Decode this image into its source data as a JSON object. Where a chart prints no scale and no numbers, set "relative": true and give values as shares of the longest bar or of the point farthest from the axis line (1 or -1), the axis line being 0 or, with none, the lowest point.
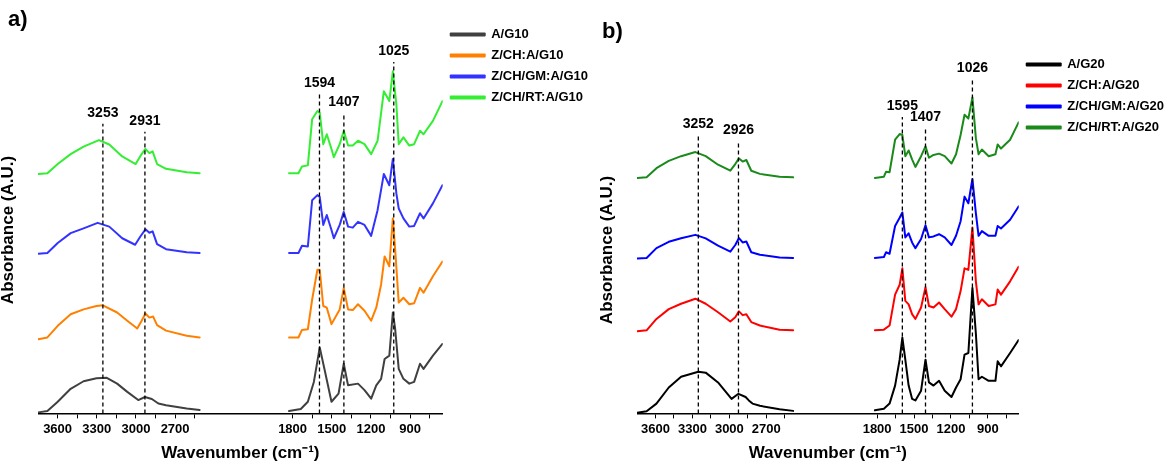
{
  "chart_data": [
    {
      "type": "line",
      "title": "a)",
      "ylabel": "Absorbance (A.U.)",
      "xlabel": "Wavenumber (cm⁻¹)",
      "relative": true,
      "legend": "right",
      "xlim": [
        3750,
        650
      ],
      "xticks": [
        3600,
        {
          "value": 3450,
          "label": null
        },
        3300,
        {
          "value": 3150,
          "label": null
        },
        3000,
        {
          "value": 2850,
          "label": null
        },
        2700,
        {
          "value": 2550,
          "label": null
        },
        1800,
        {
          "value": 1650,
          "label": null
        },
        1500,
        {
          "value": 1350,
          "label": null
        },
        1200,
        {
          "value": 1050,
          "label": null
        },
        900,
        {
          "value": 750,
          "label": null
        }
      ],
      "ref_lines": [
        {
          "axis": "x",
          "value": 3253,
          "label": "3253",
          "line_style": "dashed"
        },
        {
          "axis": "x",
          "value": 2931,
          "label": "2931",
          "line_style": "dashed"
        },
        {
          "axis": "x",
          "value": 1594,
          "label": "1594",
          "line_style": "dashed"
        },
        {
          "axis": "x",
          "value": 1407,
          "label": "1407",
          "line_style": "dashed"
        },
        {
          "axis": "x",
          "value": 1025,
          "label": "1025",
          "line_style": "dashed"
        }
      ],
      "series": [
        {
          "name": "A/G10",
          "color": "#404040",
          "x": [
            3747,
            3678,
            3599,
            3500,
            3401,
            3302,
            3223,
            3144,
            3066,
            2982,
            2931,
            2878,
            2828,
            2769,
            2611,
            2512,
            2170,
            1827,
            1737,
            1683,
            1637,
            1592,
            1556,
            1502,
            1448,
            1408,
            1375,
            1299,
            1249,
            1198,
            1159,
            1122,
            1095,
            1059,
            1032,
            1014,
            987,
            951,
            906,
            869,
            824,
            797,
            725,
            652
          ],
          "values": [
            0.003,
            0.007,
            0.034,
            0.072,
            0.094,
            0.103,
            0.104,
            0.087,
            0.063,
            0.039,
            0.048,
            0.042,
            0.029,
            0.024,
            0.014,
            0.01,
            null,
            0.007,
            0.013,
            0.034,
            0.092,
            0.193,
            0.13,
            0.034,
            0.058,
            0.145,
            0.082,
            0.087,
            0.068,
            0.043,
            0.082,
            0.101,
            0.159,
            0.169,
            0.295,
            0.246,
            0.13,
            0.101,
            0.087,
            0.092,
            0.145,
            0.13,
            0.169,
            0.203
          ]
        },
        {
          "name": "Z/CH:A/G10",
          "color": "#ff8000",
          "x": [
            3747,
            3678,
            3599,
            3500,
            3401,
            3302,
            3253,
            3144,
            3066,
            2990,
            2956,
            2927,
            2897,
            2868,
            2838,
            2769,
            2611,
            2512,
            2170,
            1827,
            1755,
            1728,
            1683,
            1650,
            1610,
            1592,
            1565,
            1538,
            1502,
            1439,
            1408,
            1375,
            1339,
            1299,
            1249,
            1198,
            1159,
            1122,
            1095,
            1059,
            1032,
            1014,
            987,
            951,
            906,
            869,
            824,
            797,
            725,
            652
          ],
          "values": [
            0.217,
            0.222,
            0.256,
            0.29,
            0.304,
            0.314,
            0.316,
            0.295,
            0.271,
            0.248,
            0.271,
            0.292,
            0.28,
            0.283,
            0.258,
            0.242,
            0.227,
            0.222,
            null,
            0.222,
            0.222,
            0.244,
            0.246,
            0.333,
            0.42,
            0.42,
            0.314,
            0.309,
            0.261,
            0.304,
            0.367,
            0.304,
            0.302,
            0.319,
            0.3,
            0.271,
            0.309,
            0.377,
            0.459,
            0.43,
            0.57,
            0.478,
            0.324,
            0.338,
            0.319,
            0.322,
            0.367,
            0.353,
            0.401,
            0.444
          ]
        },
        {
          "name": "Z/CH/GM:A/G10",
          "color": "#3333ff",
          "x": [
            3747,
            3678,
            3599,
            3500,
            3401,
            3293,
            3204,
            3105,
            3006,
            2966,
            2927,
            2897,
            2872,
            2838,
            2769,
            2611,
            2512,
            2170,
            1827,
            1755,
            1728,
            1683,
            1650,
            1610,
            1592,
            1565,
            1538,
            1502,
            1484,
            1439,
            1408,
            1375,
            1339,
            1299,
            1249,
            1198,
            1149,
            1101,
            1059,
            1032,
            1005,
            987,
            951,
            906,
            869,
            824,
            797,
            725,
            652
          ],
          "values": [
            0.467,
            0.469,
            0.498,
            0.527,
            0.541,
            0.557,
            0.546,
            0.512,
            0.493,
            0.517,
            0.538,
            0.528,
            0.532,
            0.495,
            0.48,
            0.471,
            0.469,
            null,
            0.469,
            0.469,
            0.49,
            0.488,
            0.623,
            0.638,
            0.633,
            0.551,
            0.58,
            0.536,
            0.512,
            0.551,
            0.589,
            0.546,
            0.543,
            0.56,
            0.551,
            0.519,
            0.594,
            0.7,
            0.667,
            0.744,
            0.643,
            0.599,
            0.57,
            0.546,
            0.548,
            0.585,
            0.57,
            0.614,
            0.667
          ]
        },
        {
          "name": "Z/CH/RT:A/G10",
          "color": "#33ee33",
          "x": [
            3747,
            3678,
            3599,
            3500,
            3401,
            3283,
            3204,
            3105,
            3002,
            2956,
            2927,
            2897,
            2872,
            2838,
            2769,
            2611,
            2512,
            2170,
            1827,
            1755,
            1728,
            1683,
            1650,
            1610,
            1592,
            1565,
            1538,
            1502,
            1484,
            1439,
            1408,
            1375,
            1339,
            1299,
            1249,
            1198,
            1149,
            1101,
            1059,
            1032,
            1005,
            987,
            951,
            906,
            869,
            824,
            797,
            725,
            652
          ],
          "values": [
            0.7,
            0.702,
            0.729,
            0.758,
            0.78,
            0.799,
            0.786,
            0.751,
            0.729,
            0.758,
            0.773,
            0.761,
            0.766,
            0.729,
            0.715,
            0.705,
            0.702,
            null,
            0.702,
            0.702,
            0.722,
            0.725,
            0.86,
            0.884,
            0.879,
            0.787,
            0.816,
            0.773,
            0.749,
            0.787,
            0.826,
            0.783,
            0.783,
            0.797,
            0.787,
            0.758,
            0.797,
            0.942,
            0.913,
            1.0,
            0.903,
            0.787,
            0.807,
            0.783,
            0.787,
            0.826,
            0.816,
            0.855,
            0.913
          ]
        }
      ]
    },
    {
      "type": "line",
      "title": "b)",
      "ylabel": "Absorbance (A.U.)",
      "xlabel": "Wavenumber (cm⁻¹)",
      "relative": true,
      "legend": "right",
      "xlim": [
        3750,
        650
      ],
      "xticks": [
        3600,
        {
          "value": 3450,
          "label": null
        },
        3300,
        {
          "value": 3150,
          "label": null
        },
        3000,
        {
          "value": 2850,
          "label": null
        },
        2700,
        {
          "value": 2550,
          "label": null
        },
        1800,
        {
          "value": 1650,
          "label": null
        },
        1500,
        {
          "value": 1350,
          "label": null
        },
        1200,
        {
          "value": 1050,
          "label": null
        },
        900,
        {
          "value": 750,
          "label": null
        }
      ],
      "ref_lines": [
        {
          "axis": "x",
          "value": 3252,
          "label": "3252",
          "line_style": "dashed"
        },
        {
          "axis": "x",
          "value": 2926,
          "label": "2926",
          "line_style": "dashed"
        },
        {
          "axis": "x",
          "value": 1595,
          "label": "1595",
          "line_style": "dashed"
        },
        {
          "axis": "x",
          "value": 1407,
          "label": "1407",
          "line_style": "dashed"
        },
        {
          "axis": "x",
          "value": 1026,
          "label": "1026",
          "line_style": "dashed"
        }
      ],
      "series": [
        {
          "name": "A/G20",
          "color": "#000000",
          "x": [
            3748,
            3672,
            3592,
            3492,
            3392,
            3252,
            3192,
            3092,
            2982,
            2926,
            2868,
            2842,
            2812,
            2752,
            2592,
            2482,
            2150,
            1818,
            1745,
            1699,
            1654,
            1617,
            1595,
            1571,
            1544,
            1516,
            1489,
            1443,
            1407,
            1379,
            1342,
            1297,
            1251,
            1196,
            1159,
            1122,
            1090,
            1059,
            1026,
            998,
            976,
            949,
            894,
            839,
            821,
            794,
            720,
            651
          ],
          "values": [
            0.002,
            0.007,
            0.031,
            0.082,
            0.116,
            0.132,
            0.129,
            0.098,
            0.046,
            0.062,
            0.052,
            0.041,
            0.031,
            0.024,
            0.013,
            0.008,
            null,
            0.01,
            0.015,
            0.031,
            0.088,
            0.17,
            0.24,
            0.17,
            0.088,
            0.046,
            0.041,
            0.072,
            0.17,
            0.098,
            0.088,
            0.103,
            0.072,
            0.052,
            0.082,
            0.108,
            0.186,
            0.191,
            0.397,
            0.253,
            0.108,
            0.116,
            0.103,
            0.103,
            0.165,
            0.149,
            0.191,
            0.232
          ]
        },
        {
          "name": "Z/CH:A/G20",
          "color": "#ff0000",
          "x": [
            3748,
            3672,
            3592,
            3492,
            3392,
            3276,
            3192,
            3092,
            2992,
            2952,
            2922,
            2892,
            2862,
            2822,
            2752,
            2592,
            2482,
            2150,
            1818,
            1745,
            1699,
            1654,
            1617,
            1595,
            1571,
            1544,
            1516,
            1489,
            1443,
            1407,
            1379,
            1342,
            1297,
            1251,
            1196,
            1159,
            1122,
            1090,
            1059,
            1026,
            998,
            976,
            949,
            894,
            839,
            821,
            794,
            720,
            651
          ],
          "values": [
            0.26,
            0.263,
            0.299,
            0.33,
            0.347,
            0.363,
            0.347,
            0.32,
            0.291,
            0.304,
            0.323,
            0.311,
            0.314,
            0.289,
            0.278,
            0.265,
            0.263,
            null,
            0.263,
            0.265,
            0.278,
            0.376,
            0.407,
            0.459,
            0.356,
            0.345,
            0.314,
            0.299,
            0.335,
            0.399,
            0.34,
            0.335,
            0.351,
            0.33,
            0.306,
            0.33,
            0.387,
            0.459,
            0.454,
            0.588,
            0.418,
            0.345,
            0.361,
            0.34,
            0.345,
            0.392,
            0.376,
            0.418,
            0.464
          ]
        },
        {
          "name": "Z/CH/GM:A/G20",
          "color": "#0000ff",
          "x": [
            3748,
            3672,
            3592,
            3492,
            3392,
            3276,
            3192,
            3092,
            2992,
            2952,
            2922,
            2892,
            2862,
            2822,
            2752,
            2592,
            2482,
            2150,
            1818,
            1745,
            1727,
            1699,
            1654,
            1617,
            1595,
            1571,
            1544,
            1516,
            1489,
            1443,
            1407,
            1379,
            1342,
            1297,
            1251,
            1196,
            1159,
            1122,
            1090,
            1059,
            1026,
            998,
            976,
            949,
            894,
            839,
            821,
            794,
            720,
            651
          ],
          "values": [
            0.49,
            0.492,
            0.523,
            0.543,
            0.554,
            0.565,
            0.554,
            0.531,
            0.512,
            0.533,
            0.555,
            0.541,
            0.544,
            0.51,
            0.502,
            0.493,
            0.492,
            null,
            0.492,
            0.495,
            0.51,
            0.505,
            0.593,
            0.619,
            0.636,
            0.557,
            0.57,
            0.541,
            0.523,
            0.552,
            0.595,
            0.557,
            0.56,
            0.567,
            0.557,
            0.533,
            0.562,
            0.608,
            0.686,
            0.665,
            0.742,
            0.634,
            0.562,
            0.577,
            0.562,
            0.562,
            0.593,
            0.585,
            0.613,
            0.655
          ]
        },
        {
          "name": "Z/CH/RT:A/G20",
          "color": "#1a8a1a",
          "x": [
            3748,
            3672,
            3592,
            3492,
            3392,
            3276,
            3192,
            3092,
            2992,
            2952,
            2922,
            2892,
            2862,
            2822,
            2752,
            2592,
            2482,
            2150,
            1818,
            1745,
            1727,
            1699,
            1654,
            1617,
            1595,
            1571,
            1544,
            1516,
            1489,
            1443,
            1407,
            1379,
            1342,
            1297,
            1251,
            1196,
            1159,
            1122,
            1090,
            1059,
            1026,
            998,
            976,
            949,
            894,
            839,
            821,
            794,
            720,
            651
          ],
          "values": [
            0.745,
            0.747,
            0.776,
            0.799,
            0.814,
            0.827,
            0.814,
            0.787,
            0.768,
            0.789,
            0.807,
            0.797,
            0.802,
            0.768,
            0.758,
            0.749,
            0.747,
            null,
            0.745,
            0.749,
            0.765,
            0.763,
            0.866,
            0.884,
            0.881,
            0.814,
            0.832,
            0.804,
            0.78,
            0.814,
            0.845,
            0.809,
            0.818,
            0.822,
            0.814,
            0.791,
            0.82,
            0.881,
            0.945,
            0.933,
            1.0,
            0.871,
            0.82,
            0.835,
            0.814,
            0.82,
            0.851,
            0.838,
            0.866,
            0.921
          ]
        }
      ]
    }
  ]
}
